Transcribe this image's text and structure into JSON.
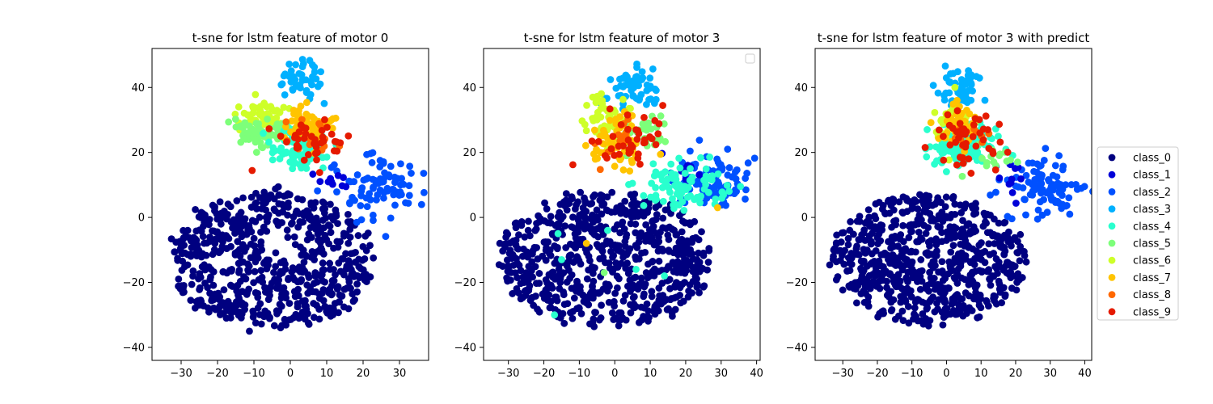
{
  "figure_title": "",
  "legend": {
    "entries": [
      {
        "label": "class_0",
        "color": "#000080"
      },
      {
        "label": "class_1",
        "color": "#0000d8"
      },
      {
        "label": "class_2",
        "color": "#0050ff"
      },
      {
        "label": "class_3",
        "color": "#00b0ff"
      },
      {
        "label": "class_4",
        "color": "#29ffce"
      },
      {
        "label": "class_5",
        "color": "#7dff7a"
      },
      {
        "label": "class_6",
        "color": "#ceff29"
      },
      {
        "label": "class_7",
        "color": "#ffc400"
      },
      {
        "label": "class_8",
        "color": "#ff6800"
      },
      {
        "label": "class_9",
        "color": "#e51a00"
      }
    ],
    "placement": "right of third panel"
  },
  "chart_data": [
    {
      "type": "scatter",
      "title": "t-sne for lstm feature of motor 0",
      "xlabel": "",
      "ylabel": "",
      "xlim": [
        -38,
        38
      ],
      "ylim": [
        -44,
        52
      ],
      "xticks": [
        -30,
        -20,
        -10,
        0,
        10,
        20,
        30
      ],
      "yticks": [
        -40,
        -20,
        0,
        20,
        40
      ],
      "grid": false,
      "empty_legend": false,
      "clusters": [
        {
          "class": "class_0",
          "cx": -5,
          "cy": -13,
          "rx": 28,
          "ry": 21,
          "n": 650,
          "hole": [
            -2,
            -8,
            6,
            5
          ]
        },
        {
          "class": "class_3",
          "cx": 3,
          "cy": 42,
          "rx": 6,
          "ry": 5,
          "n": 45
        },
        {
          "class": "class_2",
          "cx": 25,
          "cy": 9,
          "rx": 11,
          "ry": 8,
          "n": 90
        },
        {
          "class": "class_1",
          "cx": 10,
          "cy": 11,
          "rx": 5,
          "ry": 4,
          "n": 10
        },
        {
          "class": "class_6",
          "cx": -9,
          "cy": 31,
          "rx": 6,
          "ry": 5,
          "n": 60
        },
        {
          "class": "class_5",
          "cx": -8,
          "cy": 26,
          "rx": 6,
          "ry": 5,
          "n": 60
        },
        {
          "class": "class_4",
          "cx": 3,
          "cy": 22,
          "rx": 7,
          "ry": 6,
          "n": 110
        },
        {
          "class": "class_7",
          "cx": 5,
          "cy": 29,
          "rx": 6,
          "ry": 6,
          "n": 60
        },
        {
          "class": "class_8",
          "cx": 5,
          "cy": 25,
          "rx": 8,
          "ry": 6,
          "n": 15
        },
        {
          "class": "class_9",
          "cx": 6,
          "cy": 24,
          "rx": 11,
          "ry": 8,
          "n": 40
        }
      ]
    },
    {
      "type": "scatter",
      "title": "t-sne for lstm feature of motor 3",
      "xlabel": "",
      "ylabel": "",
      "xlim": [
        -37,
        41
      ],
      "ylim": [
        -44,
        52
      ],
      "xticks": [
        -30,
        -20,
        -10,
        0,
        10,
        20,
        30,
        40
      ],
      "yticks": [
        -40,
        -20,
        0,
        20,
        40
      ],
      "grid": false,
      "empty_legend": true,
      "clusters": [
        {
          "class": "class_0",
          "cx": -3,
          "cy": -13,
          "rx": 30,
          "ry": 21,
          "n": 700
        },
        {
          "class": "class_3",
          "cx": 5,
          "cy": 40,
          "rx": 6,
          "ry": 6,
          "n": 55
        },
        {
          "class": "class_2",
          "cx": 27,
          "cy": 11,
          "rx": 10,
          "ry": 8,
          "n": 90
        },
        {
          "class": "class_1",
          "cx": 18,
          "cy": 14,
          "rx": 6,
          "ry": 5,
          "n": 10
        },
        {
          "class": "class_4",
          "cx": 20,
          "cy": 10,
          "rx": 12,
          "ry": 7,
          "n": 90
        },
        {
          "class": "class_6",
          "cx": -2,
          "cy": 30,
          "rx": 6,
          "ry": 6,
          "n": 50
        },
        {
          "class": "class_5",
          "cx": 8,
          "cy": 26,
          "rx": 7,
          "ry": 6,
          "n": 30
        },
        {
          "class": "class_7",
          "cx": 0,
          "cy": 23,
          "rx": 8,
          "ry": 7,
          "n": 60
        },
        {
          "class": "class_8",
          "cx": 2,
          "cy": 23,
          "rx": 8,
          "ry": 6,
          "n": 12
        },
        {
          "class": "class_9",
          "cx": 3,
          "cy": 23,
          "rx": 9,
          "ry": 8,
          "n": 40
        }
      ],
      "points": [
        {
          "class": "class_4",
          "x": -16,
          "y": -5
        },
        {
          "class": "class_4",
          "x": -17,
          "y": -30
        },
        {
          "class": "class_4",
          "x": -15,
          "y": -13
        },
        {
          "class": "class_4",
          "x": -2,
          "y": -4
        },
        {
          "class": "class_4",
          "x": 6,
          "y": -16
        },
        {
          "class": "class_4",
          "x": 14,
          "y": -18
        },
        {
          "class": "class_5",
          "x": -3,
          "y": -17
        },
        {
          "class": "class_7",
          "x": -8,
          "y": -8
        },
        {
          "class": "class_7",
          "x": 29,
          "y": 3
        }
      ]
    },
    {
      "type": "scatter",
      "title": "t-sne for lstm feature of motor 3 with predict",
      "xlabel": "",
      "ylabel": "",
      "xlim": [
        -38,
        42
      ],
      "ylim": [
        -44,
        52
      ],
      "xticks": [
        -30,
        -20,
        -10,
        0,
        10,
        20,
        30,
        40
      ],
      "yticks": [
        -40,
        -20,
        0,
        20,
        40
      ],
      "grid": false,
      "empty_legend": false,
      "clusters": [
        {
          "class": "class_0",
          "cx": -5,
          "cy": -13,
          "rx": 28,
          "ry": 20,
          "n": 700
        },
        {
          "class": "class_3",
          "cx": 4,
          "cy": 40,
          "rx": 6,
          "ry": 6,
          "n": 55
        },
        {
          "class": "class_2",
          "cx": 27,
          "cy": 10,
          "rx": 10,
          "ry": 8,
          "n": 100
        },
        {
          "class": "class_1",
          "cx": 18,
          "cy": 12,
          "rx": 6,
          "ry": 5,
          "n": 10
        },
        {
          "class": "class_4",
          "cx": 5,
          "cy": 22,
          "rx": 9,
          "ry": 7,
          "n": 110
        },
        {
          "class": "class_6",
          "cx": 2,
          "cy": 30,
          "rx": 6,
          "ry": 6,
          "n": 45
        },
        {
          "class": "class_5",
          "cx": 13,
          "cy": 18,
          "rx": 6,
          "ry": 5,
          "n": 15
        },
        {
          "class": "class_7",
          "cx": 3,
          "cy": 28,
          "rx": 5,
          "ry": 5,
          "n": 40
        },
        {
          "class": "class_8",
          "cx": 5,
          "cy": 24,
          "rx": 8,
          "ry": 6,
          "n": 10
        },
        {
          "class": "class_9",
          "cx": 7,
          "cy": 23,
          "rx": 10,
          "ry": 8,
          "n": 45
        }
      ]
    }
  ]
}
